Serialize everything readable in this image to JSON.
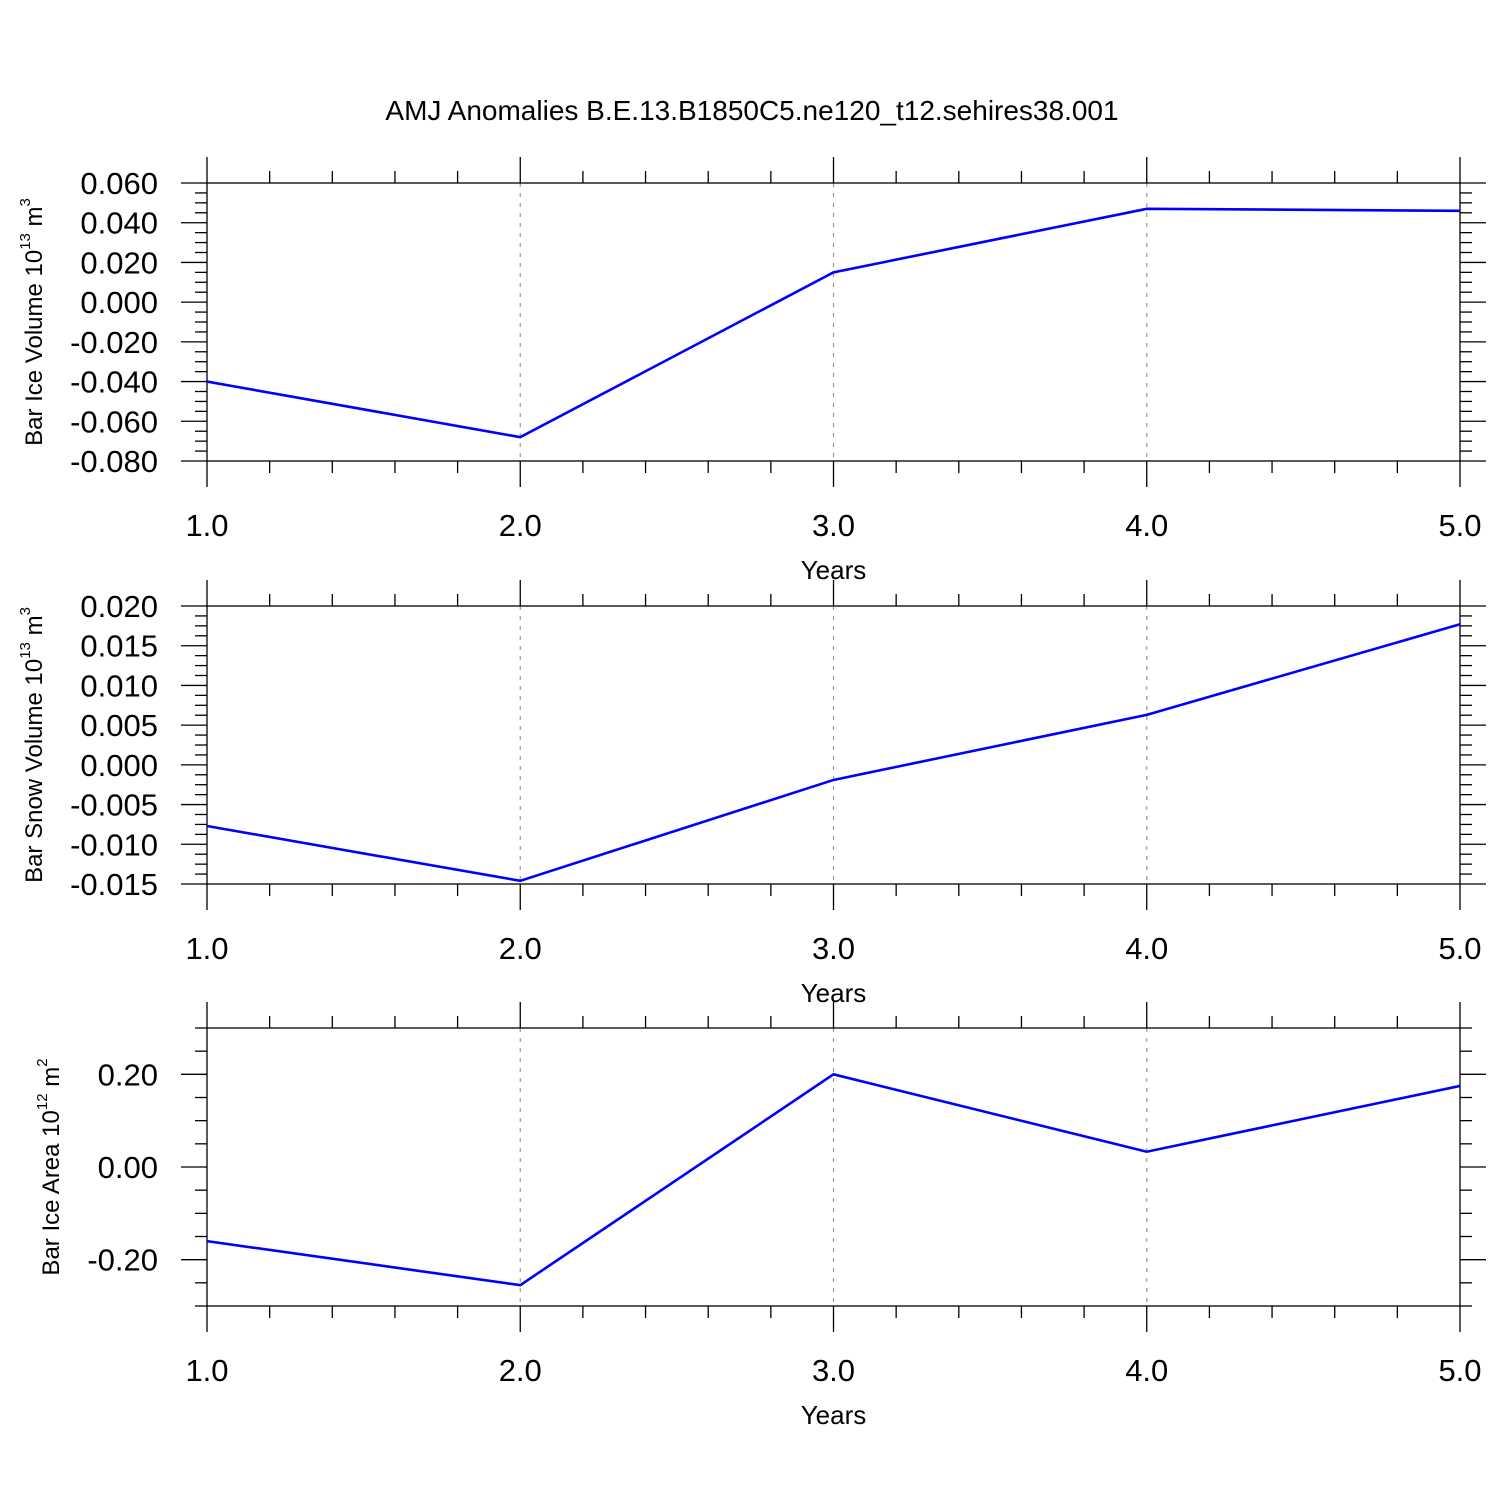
{
  "figure": {
    "title": "AMJ Anomalies B.E.13.B1850C5.ne120_t12.sehires38.001"
  },
  "colors": {
    "line": "#0000ff",
    "axis": "#000000",
    "grid": "#999999",
    "background": "#ffffff"
  },
  "chart_data": [
    {
      "type": "line",
      "ylabel": {
        "text": "Bar Ice Volume 10",
        "exp": "13",
        "unit": " m",
        "unit_exp": "3"
      },
      "xlabel": "Years",
      "x": [
        1.0,
        2.0,
        3.0,
        4.0,
        5.0
      ],
      "series": [
        {
          "values": [
            -0.04,
            -0.068,
            0.015,
            0.047,
            0.046
          ]
        }
      ],
      "xlim": [
        1.0,
        5.0
      ],
      "ylim": [
        -0.08,
        0.06
      ],
      "xticks": [
        1.0,
        2.0,
        3.0,
        4.0,
        5.0
      ],
      "xtick_labels": [
        "1.0",
        "2.0",
        "3.0",
        "4.0",
        "5.0"
      ],
      "yticks": [
        -0.08,
        -0.06,
        -0.04,
        -0.02,
        0.0,
        0.02,
        0.04,
        0.06
      ],
      "ytick_labels": [
        "-0.080",
        "-0.060",
        "-0.040",
        "-0.020",
        "0.000",
        "0.020",
        "0.040",
        "0.060"
      ],
      "yminor_step": 0.005,
      "xminor_step": 0.2,
      "vgrid": "dashed at major x ticks"
    },
    {
      "type": "line",
      "ylabel": {
        "text": "Bar Snow Volume 10",
        "exp": "13",
        "unit": " m",
        "unit_exp": "3"
      },
      "xlabel": "Years",
      "x": [
        1.0,
        2.0,
        3.0,
        4.0,
        5.0
      ],
      "series": [
        {
          "values": [
            -0.0077,
            -0.0146,
            -0.0019,
            0.0063,
            0.0177
          ]
        }
      ],
      "xlim": [
        1.0,
        5.0
      ],
      "ylim": [
        -0.015,
        0.02
      ],
      "xticks": [
        1.0,
        2.0,
        3.0,
        4.0,
        5.0
      ],
      "xtick_labels": [
        "1.0",
        "2.0",
        "3.0",
        "4.0",
        "5.0"
      ],
      "yticks": [
        -0.015,
        -0.01,
        -0.005,
        0.0,
        0.005,
        0.01,
        0.015,
        0.02
      ],
      "ytick_labels": [
        "-0.015",
        "-0.010",
        "-0.005",
        "0.000",
        "0.005",
        "0.010",
        "0.015",
        "0.020"
      ],
      "yminor_step": 0.00125,
      "xminor_step": 0.2,
      "vgrid": "dashed at major x ticks"
    },
    {
      "type": "line",
      "ylabel": {
        "text": "Bar Ice Area 10",
        "exp": "12",
        "unit": " m",
        "unit_exp": "2"
      },
      "xlabel": "Years",
      "x": [
        1.0,
        2.0,
        3.0,
        4.0,
        5.0
      ],
      "series": [
        {
          "values": [
            -0.16,
            -0.255,
            0.2,
            0.033,
            0.175
          ]
        }
      ],
      "xlim": [
        1.0,
        5.0
      ],
      "ylim": [
        -0.3,
        0.3
      ],
      "xticks": [
        1.0,
        2.0,
        3.0,
        4.0,
        5.0
      ],
      "xtick_labels": [
        "1.0",
        "2.0",
        "3.0",
        "4.0",
        "5.0"
      ],
      "yticks": [
        -0.2,
        0.0,
        0.2
      ],
      "ytick_labels": [
        "-0.20",
        "0.00",
        "0.20"
      ],
      "yminor_step": 0.05,
      "xminor_step": 0.2,
      "vgrid": "dashed at major x ticks"
    }
  ]
}
